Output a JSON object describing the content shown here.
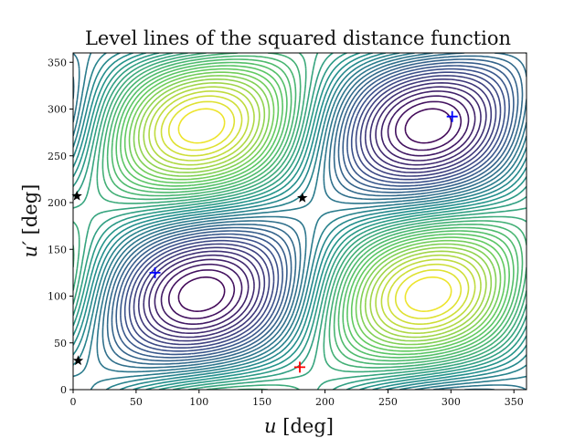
{
  "chart_data": {
    "type": "contour",
    "title": "Level lines of the squared distance function",
    "xlabel": "u [deg]",
    "ylabel": "u′ [deg]",
    "xlim": [
      0,
      360
    ],
    "ylim": [
      0,
      360
    ],
    "xticks": [
      0,
      50,
      100,
      150,
      200,
      250,
      300,
      350
    ],
    "yticks": [
      0,
      50,
      100,
      150,
      200,
      250,
      300,
      350
    ],
    "colormap": "viridis",
    "colors": [
      "#440154",
      "#3b528b",
      "#21918c",
      "#5ec962",
      "#fde725"
    ],
    "grid": false,
    "legend": "none",
    "markers": [
      {
        "kind": "minimum",
        "symbol": "plus",
        "color": "#0000ff",
        "x": 65,
        "y": 125
      },
      {
        "kind": "minimum",
        "symbol": "plus",
        "color": "#0000ff",
        "x": 301,
        "y": 292
      },
      {
        "kind": "maximum",
        "symbol": "plus",
        "color": "#ff0000",
        "x": 180,
        "y": 24
      },
      {
        "kind": "saddle",
        "symbol": "star",
        "color": "#000000",
        "x": 182,
        "y": 205
      },
      {
        "kind": "saddle",
        "symbol": "star",
        "color": "#000000",
        "x": 3,
        "y": 207
      },
      {
        "kind": "saddle",
        "symbol": "star",
        "color": "#000000",
        "x": 4,
        "y": 31
      }
    ]
  }
}
